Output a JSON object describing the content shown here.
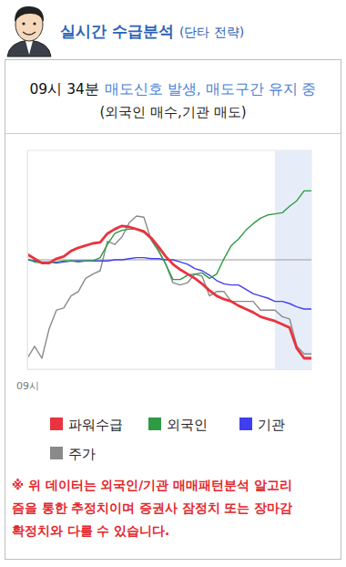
{
  "header": {
    "title": "실시간 수급분석",
    "subtitle": "(단타 전략)"
  },
  "signal": {
    "time": "09시 34분",
    "message": "매도신호 발생, 매도구간 유지 중",
    "detail": "(외국인 매수,기관 매도)"
  },
  "chart_data": {
    "type": "line",
    "x": [
      0,
      1,
      2,
      3,
      4,
      5,
      6,
      7,
      8,
      9,
      10,
      11,
      12,
      13,
      14,
      15,
      16,
      17,
      18,
      19,
      20,
      21,
      22,
      23,
      24,
      25,
      26,
      27,
      28,
      29,
      30,
      31,
      32,
      33,
      34,
      35,
      36,
      37,
      38,
      39
    ],
    "xlim": [
      0,
      39
    ],
    "xticks": [
      {
        "value": 0,
        "label": "09시"
      }
    ],
    "ylim": [
      -100,
      100
    ],
    "yticks": [
      0
    ],
    "grid": true,
    "tick_labels": "x",
    "legend": "bottom",
    "sell_zone": [
      34,
      39
    ],
    "series": [
      {
        "name": "파워수급",
        "color": "#e8343f",
        "values": [
          5,
          1,
          -3,
          -3,
          1,
          3,
          8,
          11,
          13,
          15,
          16,
          24,
          28,
          31,
          30,
          28,
          26,
          20,
          12,
          3,
          -4,
          -9,
          -13,
          -17,
          -22,
          -28,
          -33,
          -36,
          -38,
          -42,
          -45,
          -48,
          -52,
          -54,
          -56,
          -59,
          -62,
          -81,
          -90,
          -90
        ]
      },
      {
        "name": "외국인",
        "color": "#2e9a44",
        "values": [
          1,
          -2,
          -3,
          -2,
          -2,
          -1,
          -1,
          -2,
          -1,
          -1,
          2,
          14,
          24,
          27,
          28,
          28,
          25,
          19,
          9,
          -4,
          -18,
          -18,
          -14,
          -13,
          -12,
          -17,
          -13,
          1,
          13,
          19,
          27,
          33,
          38,
          41,
          42,
          43,
          49,
          54,
          63,
          63
        ]
      },
      {
        "name": "기관",
        "color": "#3f3ff0",
        "values": [
          0,
          -1,
          -2,
          -2,
          -3,
          -2,
          -1,
          -1,
          -1,
          -1,
          -1,
          -1,
          0,
          0,
          1,
          2,
          2,
          1,
          1,
          0,
          0,
          -2,
          -4,
          -8,
          -10,
          -14,
          -19,
          -22,
          -23,
          -23,
          -27,
          -31,
          -33,
          -35,
          -38,
          -38,
          -40,
          -43,
          -45,
          -45
        ]
      },
      {
        "name": "주가",
        "color": "#8a8a8a",
        "values": [
          -90,
          -79,
          -90,
          -63,
          -46,
          -44,
          -33,
          -29,
          -17,
          -13,
          -10,
          17,
          14,
          21,
          34,
          40,
          39,
          18,
          8,
          -4,
          -21,
          -23,
          -21,
          -13,
          -15,
          -33,
          -29,
          -29,
          -38,
          -38,
          -38,
          -38,
          -46,
          -46,
          -46,
          -52,
          -54,
          -79,
          -86,
          -86
        ]
      }
    ]
  },
  "note": [
    "※ 위 데이터는 외국인/기관 매매패턴분석 알고리",
    "즘을 통한 추정치이며 증권사 잠정치 또는 장마감",
    "확정치와 다를 수 있습니다."
  ]
}
